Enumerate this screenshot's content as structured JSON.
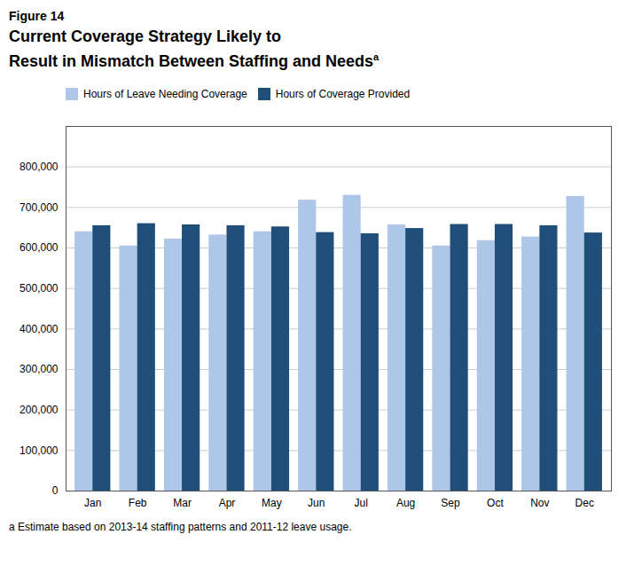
{
  "chart_data": {
    "type": "bar",
    "label": "Figure 14",
    "title": "Current Coverage Strategy Likely to\nResult in Mismatch Between Staffing and Needs",
    "title_note": "a",
    "footnote": "a Estimate based on 2013-14 staffing patterns and 2011-12 leave usage.",
    "categories": [
      "Jan",
      "Feb",
      "Mar",
      "Apr",
      "May",
      "Jun",
      "Jul",
      "Aug",
      "Sep",
      "Oct",
      "Nov",
      "Dec"
    ],
    "series": [
      {
        "name": "Hours of Leave Needing Coverage",
        "color": "#aec6e8",
        "values": [
          640000,
          605000,
          622000,
          632000,
          640000,
          718000,
          730000,
          657000,
          605000,
          618000,
          627000,
          727000
        ]
      },
      {
        "name": "Hours of Coverage Provided",
        "color": "#1f4e79",
        "values": [
          655000,
          660000,
          657000,
          655000,
          652000,
          638000,
          635000,
          648000,
          658000,
          658000,
          655000,
          637000
        ]
      }
    ],
    "ylim": [
      0,
      900000
    ],
    "yticks": [
      0,
      {
        "value": 100000,
        "label": "100,000"
      },
      {
        "value": 200000,
        "label": "200,000"
      },
      {
        "value": 300000,
        "label": "300,000"
      },
      {
        "value": 400000,
        "label": "400,000"
      },
      {
        "value": 500000,
        "label": "500,000"
      },
      {
        "value": 600000,
        "label": "600,000"
      },
      {
        "value": 700000,
        "label": "700,000"
      },
      {
        "value": 800000,
        "label": "800,000"
      }
    ],
    "grid": true,
    "legend": "upper left"
  }
}
